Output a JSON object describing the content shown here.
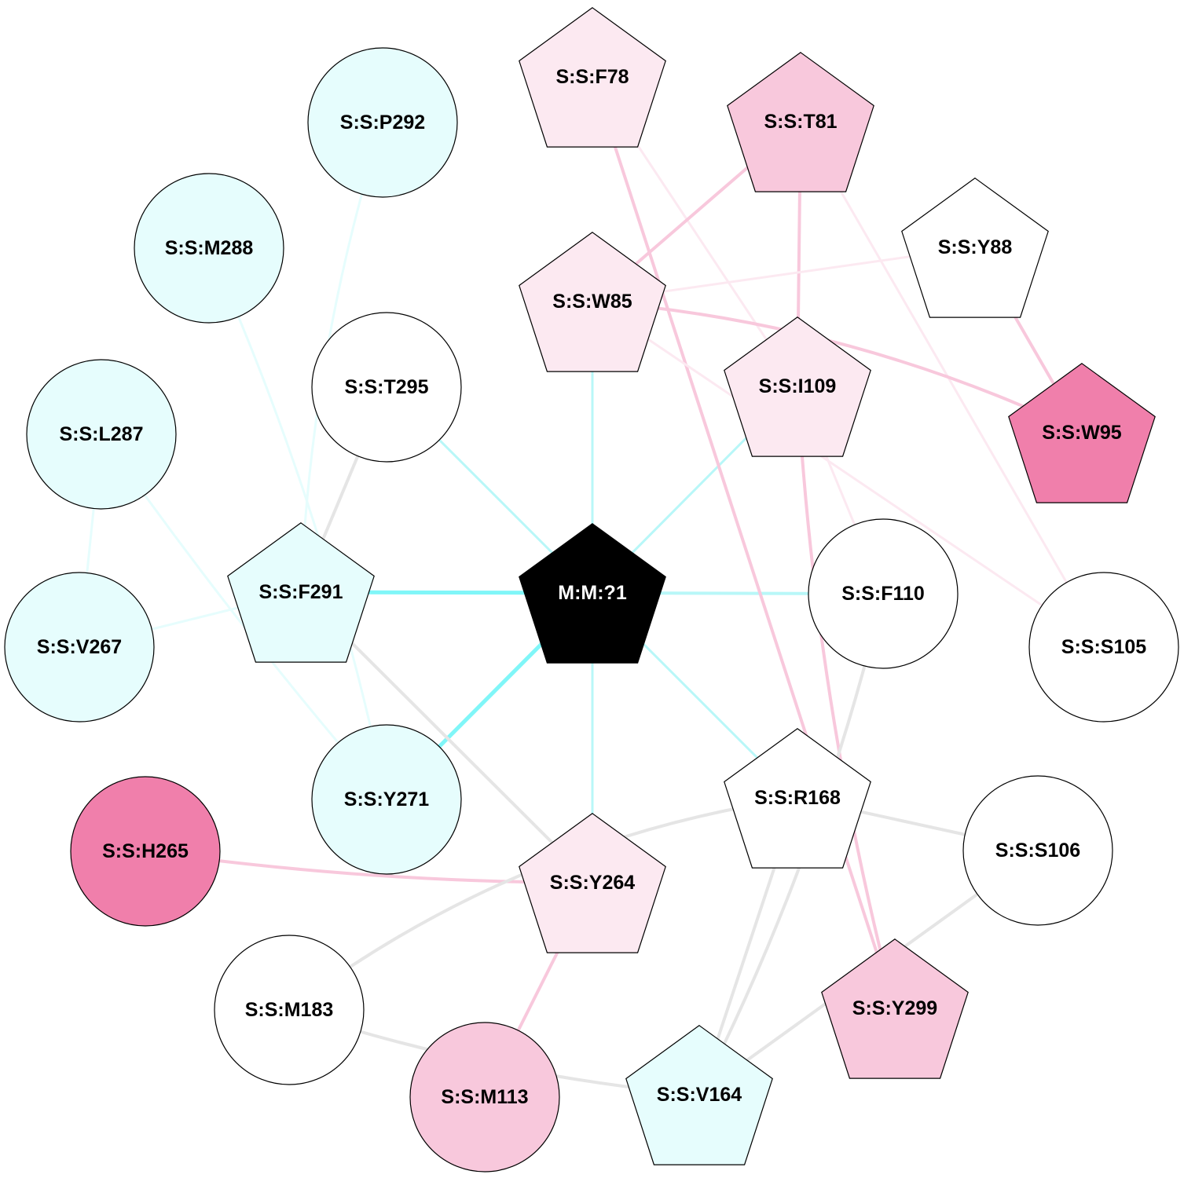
{
  "palette": {
    "cyan_light": "#e6fdfd",
    "cyan_medium": "#b8f7f8",
    "cyan_strong": "#80f6f8",
    "pink_faint": "#fce9f1",
    "pink_light": "#f8c8dc",
    "pink_strong": "#f07fab",
    "gray": "#e5e5e5",
    "white": "#ffffff",
    "black": "#000000"
  },
  "nodes": [
    {
      "id": "M:M:?1",
      "label": "M:M:?1",
      "shape": "pentagon",
      "fill": "#000000",
      "text_color": "#ffffff"
    },
    {
      "id": "S:S:F78",
      "label": "S:S:F78",
      "shape": "pentagon",
      "fill": "#fce9f1",
      "text_color": "#000000"
    },
    {
      "id": "S:S:T81",
      "label": "S:S:T81",
      "shape": "pentagon",
      "fill": "#f8c8dc",
      "text_color": "#000000"
    },
    {
      "id": "S:S:P292",
      "label": "S:S:P292",
      "shape": "circle",
      "fill": "#e6fdfd",
      "text_color": "#000000"
    },
    {
      "id": "S:S:M288",
      "label": "S:S:M288",
      "shape": "circle",
      "fill": "#e6fdfd",
      "text_color": "#000000"
    },
    {
      "id": "S:S:Y88",
      "label": "S:S:Y88",
      "shape": "pentagon",
      "fill": "#ffffff",
      "text_color": "#000000"
    },
    {
      "id": "S:S:W85",
      "label": "S:S:W85",
      "shape": "pentagon",
      "fill": "#fce9f1",
      "text_color": "#000000"
    },
    {
      "id": "S:S:T295",
      "label": "S:S:T295",
      "shape": "circle",
      "fill": "#ffffff",
      "text_color": "#000000"
    },
    {
      "id": "S:S:I109",
      "label": "S:S:I109",
      "shape": "pentagon",
      "fill": "#fce9f1",
      "text_color": "#000000"
    },
    {
      "id": "S:S:L287",
      "label": "S:S:L287",
      "shape": "circle",
      "fill": "#e6fdfd",
      "text_color": "#000000"
    },
    {
      "id": "S:S:W95",
      "label": "S:S:W95",
      "shape": "pentagon",
      "fill": "#f07fab",
      "text_color": "#000000"
    },
    {
      "id": "S:S:F291",
      "label": "S:S:F291",
      "shape": "pentagon",
      "fill": "#e6fdfd",
      "text_color": "#000000"
    },
    {
      "id": "S:S:F110",
      "label": "S:S:F110",
      "shape": "circle",
      "fill": "#ffffff",
      "text_color": "#000000"
    },
    {
      "id": "S:S:V267",
      "label": "S:S:V267",
      "shape": "circle",
      "fill": "#e6fdfd",
      "text_color": "#000000"
    },
    {
      "id": "S:S:S105",
      "label": "S:S:S105",
      "shape": "circle",
      "fill": "#ffffff",
      "text_color": "#000000"
    },
    {
      "id": "S:S:Y271",
      "label": "S:S:Y271",
      "shape": "circle",
      "fill": "#e6fdfd",
      "text_color": "#000000"
    },
    {
      "id": "S:S:R168",
      "label": "S:S:R168",
      "shape": "pentagon",
      "fill": "#ffffff",
      "text_color": "#000000"
    },
    {
      "id": "S:S:H265",
      "label": "S:S:H265",
      "shape": "circle",
      "fill": "#f07fab",
      "text_color": "#000000"
    },
    {
      "id": "S:S:Y264",
      "label": "S:S:Y264",
      "shape": "pentagon",
      "fill": "#fce9f1",
      "text_color": "#000000"
    },
    {
      "id": "S:S:S106",
      "label": "S:S:S106",
      "shape": "circle",
      "fill": "#ffffff",
      "text_color": "#000000"
    },
    {
      "id": "S:S:M183",
      "label": "S:S:M183",
      "shape": "circle",
      "fill": "#ffffff",
      "text_color": "#000000"
    },
    {
      "id": "S:S:Y299",
      "label": "S:S:Y299",
      "shape": "pentagon",
      "fill": "#f8c8dc",
      "text_color": "#000000"
    },
    {
      "id": "S:S:M113",
      "label": "S:S:M113",
      "shape": "circle",
      "fill": "#f8c8dc",
      "text_color": "#000000"
    },
    {
      "id": "S:S:V164",
      "label": "S:S:V164",
      "shape": "pentagon",
      "fill": "#e6fdfd",
      "text_color": "#000000"
    }
  ],
  "edges": [
    {
      "source": "M:M:?1",
      "target": "S:S:W85",
      "color": "#b8f7f8",
      "weight": 3
    },
    {
      "source": "M:M:?1",
      "target": "S:S:T295",
      "color": "#b8f7f8",
      "weight": 3
    },
    {
      "source": "M:M:?1",
      "target": "S:S:I109",
      "color": "#b8f7f8",
      "weight": 3
    },
    {
      "source": "M:M:?1",
      "target": "S:S:F291",
      "color": "#80f6f8",
      "weight": 5
    },
    {
      "source": "M:M:?1",
      "target": "S:S:F110",
      "color": "#b8f7f8",
      "weight": 4
    },
    {
      "source": "M:M:?1",
      "target": "S:S:Y271",
      "color": "#80f6f8",
      "weight": 5
    },
    {
      "source": "M:M:?1",
      "target": "S:S:Y264",
      "color": "#b8f7f8",
      "weight": 3
    },
    {
      "source": "M:M:?1",
      "target": "S:S:R168",
      "color": "#b8f7f8",
      "weight": 3
    },
    {
      "source": "S:S:F78",
      "target": "S:S:Y299",
      "color": "#f8c8dc",
      "weight": 4
    },
    {
      "source": "S:S:F78",
      "target": "S:S:I109",
      "color": "#fce9f1",
      "weight": 3
    },
    {
      "source": "S:S:T81",
      "target": "S:S:W85",
      "color": "#f8c8dc",
      "weight": 4
    },
    {
      "source": "S:S:T81",
      "target": "S:S:I109",
      "color": "#f8c8dc",
      "weight": 4
    },
    {
      "source": "S:S:T81",
      "target": "S:S:S105",
      "color": "#fce9f1",
      "weight": 3
    },
    {
      "source": "S:S:W85",
      "target": "S:S:W95",
      "color": "#f8c8dc",
      "weight": 4
    },
    {
      "source": "S:S:W85",
      "target": "S:S:Y88",
      "color": "#fce9f1",
      "weight": 3
    },
    {
      "source": "S:S:W85",
      "target": "S:S:S105",
      "color": "#fce9f1",
      "weight": 3
    },
    {
      "source": "S:S:Y88",
      "target": "S:S:W95",
      "color": "#f8c8dc",
      "weight": 4
    },
    {
      "source": "S:S:I109",
      "target": "S:S:F110",
      "color": "#fce9f1",
      "weight": 3
    },
    {
      "source": "S:S:I109",
      "target": "S:S:Y299",
      "color": "#f8c8dc",
      "weight": 4
    },
    {
      "source": "S:S:P292",
      "target": "S:S:F291",
      "color": "#e6fdfd",
      "weight": 3
    },
    {
      "source": "S:S:M288",
      "target": "S:S:Y271",
      "color": "#e6fdfd",
      "weight": 3
    },
    {
      "source": "S:S:L287",
      "target": "S:S:V267",
      "color": "#e6fdfd",
      "weight": 3
    },
    {
      "source": "S:S:L287",
      "target": "S:S:Y271",
      "color": "#e6fdfd",
      "weight": 3
    },
    {
      "source": "S:S:F291",
      "target": "S:S:V267",
      "color": "#e6fdfd",
      "weight": 3
    },
    {
      "source": "S:S:T295",
      "target": "S:S:F291",
      "color": "#e5e5e5",
      "weight": 4
    },
    {
      "source": "S:S:F291",
      "target": "S:S:Y264",
      "color": "#e5e5e5",
      "weight": 4
    },
    {
      "source": "S:S:H265",
      "target": "S:S:Y264",
      "color": "#f8c8dc",
      "weight": 4
    },
    {
      "source": "S:S:Y264",
      "target": "S:S:M113",
      "color": "#f8c8dc",
      "weight": 4
    },
    {
      "source": "S:S:R168",
      "target": "S:S:M183",
      "color": "#e5e5e5",
      "weight": 4
    },
    {
      "source": "S:S:R168",
      "target": "S:S:S106",
      "color": "#e5e5e5",
      "weight": 4
    },
    {
      "source": "S:S:R168",
      "target": "S:S:V164",
      "color": "#e5e5e5",
      "weight": 4
    },
    {
      "source": "S:S:F110",
      "target": "S:S:V164",
      "color": "#e5e5e5",
      "weight": 4
    },
    {
      "source": "S:S:S106",
      "target": "S:S:V164",
      "color": "#e5e5e5",
      "weight": 4
    },
    {
      "source": "S:S:M183",
      "target": "S:S:V164",
      "color": "#e5e5e5",
      "weight": 4
    }
  ]
}
